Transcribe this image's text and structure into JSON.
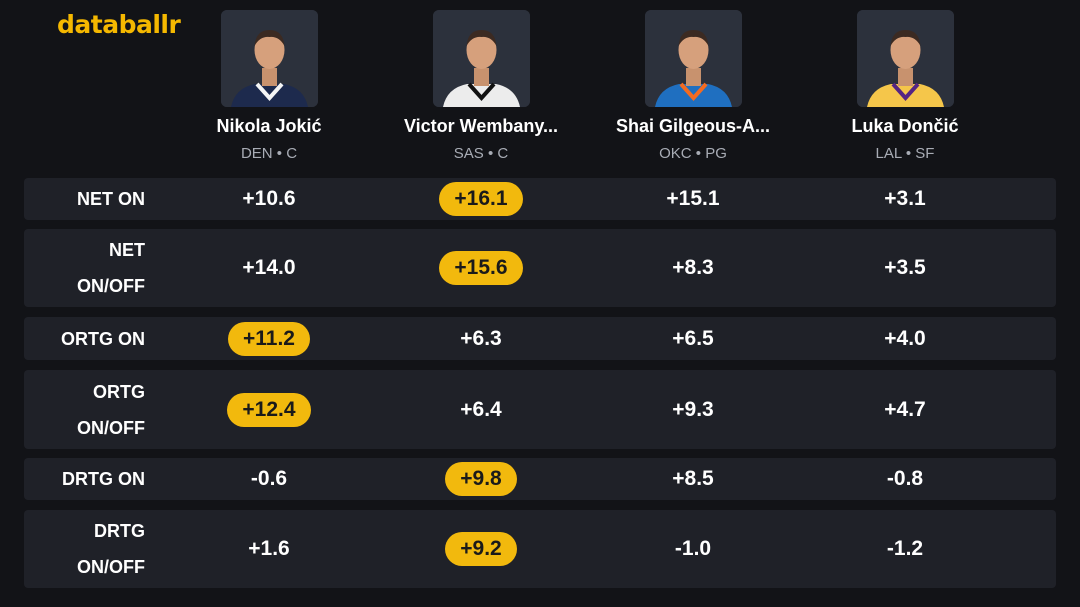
{
  "brand": {
    "logo_text": "databallr",
    "accent_color": "#f2b90d"
  },
  "players": [
    {
      "name": "Nikola Jokić",
      "meta": "DEN • C",
      "jersey_color": "#1d2a4d",
      "jersey_trim": "#f5f5f5"
    },
    {
      "name": "Victor Wembany...",
      "meta": "SAS • C",
      "jersey_color": "#ececec",
      "jersey_trim": "#111111"
    },
    {
      "name": "Shai Gilgeous-A...",
      "meta": "OKC • PG",
      "jersey_color": "#1f6fc0",
      "jersey_trim": "#f36b21"
    },
    {
      "name": "Luka Dončić",
      "meta": "LAL • SF",
      "jersey_color": "#f5c64a",
      "jersey_trim": "#552583"
    }
  ],
  "rows": [
    {
      "label_lines": [
        "NET ON"
      ],
      "values": [
        "+10.6",
        "+16.1",
        "+15.1",
        "+3.1"
      ],
      "highlight": 1
    },
    {
      "label_lines": [
        "NET",
        "ON/OFF"
      ],
      "values": [
        "+14.0",
        "+15.6",
        "+8.3",
        "+3.5"
      ],
      "highlight": 1
    },
    {
      "label_lines": [
        "ORTG ON"
      ],
      "values": [
        "+11.2",
        "+6.3",
        "+6.5",
        "+4.0"
      ],
      "highlight": 0
    },
    {
      "label_lines": [
        "ORTG",
        "ON/OFF"
      ],
      "values": [
        "+12.4",
        "+6.4",
        "+9.3",
        "+4.7"
      ],
      "highlight": 0
    },
    {
      "label_lines": [
        "DRTG ON"
      ],
      "values": [
        "-0.6",
        "+9.8",
        "+8.5",
        "-0.8"
      ],
      "highlight": 1
    },
    {
      "label_lines": [
        "DRTG",
        "ON/OFF"
      ],
      "values": [
        "+1.6",
        "+9.2",
        "-1.0",
        "-1.2"
      ],
      "highlight": 1
    }
  ]
}
